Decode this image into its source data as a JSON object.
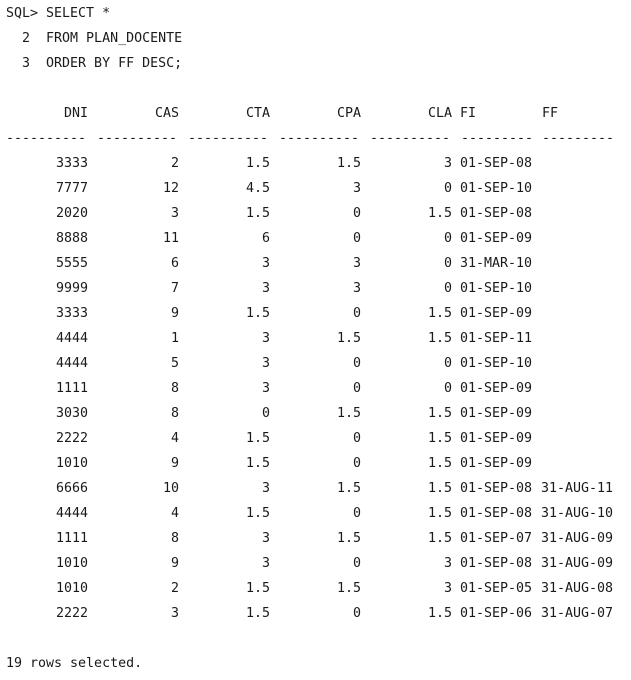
{
  "query": {
    "lines": [
      "SQL> SELECT *",
      "  2  FROM PLAN_DOCENTE",
      "  3  ORDER BY FF DESC;"
    ]
  },
  "result": {
    "headers": [
      "DNI",
      "CAS",
      "CTA",
      "CPA",
      "CLA",
      "FI",
      "FF"
    ],
    "separators": [
      "----------",
      "----------",
      "----------",
      "----------",
      "----------",
      "---------",
      "---------"
    ],
    "rows": [
      [
        "3333",
        "2",
        "1.5",
        "1.5",
        "3",
        "01-SEP-08",
        ""
      ],
      [
        "7777",
        "12",
        "4.5",
        "3",
        "0",
        "01-SEP-10",
        ""
      ],
      [
        "2020",
        "3",
        "1.5",
        "0",
        "1.5",
        "01-SEP-08",
        ""
      ],
      [
        "8888",
        "11",
        "6",
        "0",
        "0",
        "01-SEP-09",
        ""
      ],
      [
        "5555",
        "6",
        "3",
        "3",
        "0",
        "31-MAR-10",
        ""
      ],
      [
        "9999",
        "7",
        "3",
        "3",
        "0",
        "01-SEP-10",
        ""
      ],
      [
        "3333",
        "9",
        "1.5",
        "0",
        "1.5",
        "01-SEP-09",
        ""
      ],
      [
        "4444",
        "1",
        "3",
        "1.5",
        "1.5",
        "01-SEP-11",
        ""
      ],
      [
        "4444",
        "5",
        "3",
        "0",
        "0",
        "01-SEP-10",
        ""
      ],
      [
        "1111",
        "8",
        "3",
        "0",
        "0",
        "01-SEP-09",
        ""
      ],
      [
        "3030",
        "8",
        "0",
        "1.5",
        "1.5",
        "01-SEP-09",
        ""
      ],
      [
        "2222",
        "4",
        "1.5",
        "0",
        "1.5",
        "01-SEP-09",
        ""
      ],
      [
        "1010",
        "9",
        "1.5",
        "0",
        "1.5",
        "01-SEP-09",
        ""
      ],
      [
        "6666",
        "10",
        "3",
        "1.5",
        "1.5",
        "01-SEP-08",
        "31-AUG-11"
      ],
      [
        "4444",
        "4",
        "1.5",
        "0",
        "1.5",
        "01-SEP-08",
        "31-AUG-10"
      ],
      [
        "1111",
        "8",
        "3",
        "1.5",
        "1.5",
        "01-SEP-07",
        "31-AUG-09"
      ],
      [
        "1010",
        "9",
        "3",
        "0",
        "3",
        "01-SEP-08",
        "31-AUG-09"
      ],
      [
        "1010",
        "2",
        "1.5",
        "1.5",
        "3",
        "01-SEP-05",
        "31-AUG-08"
      ],
      [
        "2222",
        "3",
        "1.5",
        "0",
        "1.5",
        "01-SEP-06",
        "31-AUG-07"
      ]
    ],
    "footer": "19 rows selected."
  }
}
